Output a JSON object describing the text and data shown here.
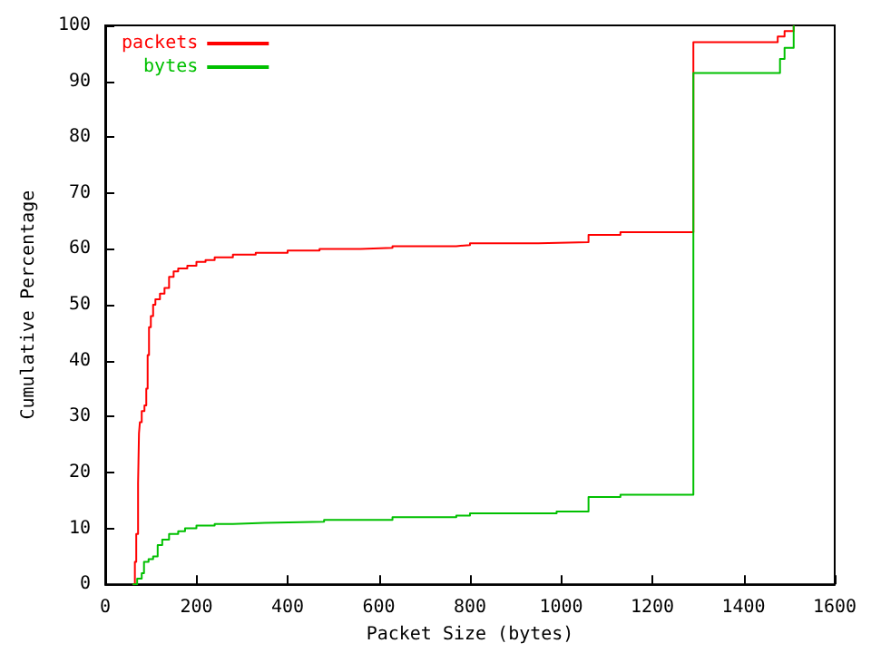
{
  "chart_data": {
    "type": "step",
    "xlabel": "Packet Size (bytes)",
    "ylabel": "Cumulative Percentage",
    "xlim": [
      0,
      1600
    ],
    "xticks": [
      0,
      200,
      400,
      600,
      800,
      1000,
      1200,
      1400,
      1600
    ],
    "ylim": [
      0,
      100
    ],
    "yticks": [
      0,
      10,
      20,
      30,
      40,
      50,
      60,
      70,
      80,
      90,
      100
    ],
    "grid": false,
    "legend": "top left",
    "marker": "none",
    "line_style": "solid",
    "series": [
      {
        "name": "packets",
        "color": "#ff0000",
        "x": [
          60,
          65,
          68,
          72,
          74,
          76,
          80,
          86,
          90,
          93,
          96,
          100,
          105,
          110,
          120,
          130,
          140,
          150,
          160,
          180,
          200,
          220,
          240,
          280,
          330,
          400,
          470,
          560,
          630,
          770,
          800,
          950,
          1060,
          1130,
          1290,
          1475,
          1490,
          1510
        ],
        "values": [
          0,
          4,
          9,
          18,
          27,
          29,
          31,
          32,
          35,
          41,
          46,
          48,
          50,
          51,
          52,
          53,
          55,
          56,
          56.5,
          57,
          57.7,
          58,
          58.5,
          59,
          59.3,
          59.7,
          60,
          60.2,
          60.5,
          60.7,
          61,
          61.2,
          62.5,
          63,
          97,
          98,
          99,
          100
        ]
      },
      {
        "name": "bytes",
        "color": "#00c000",
        "x": [
          60,
          70,
          80,
          85,
          95,
          105,
          115,
          125,
          140,
          160,
          175,
          200,
          240,
          280,
          350,
          480,
          630,
          770,
          800,
          990,
          1060,
          1130,
          1290,
          1480,
          1490,
          1510
        ],
        "values": [
          0,
          1,
          2,
          4,
          4.5,
          5,
          7,
          8,
          9,
          9.5,
          10,
          10.5,
          10.8,
          11,
          11.2,
          11.5,
          12,
          12.3,
          12.7,
          13,
          15.6,
          16,
          91.5,
          94,
          96,
          100
        ]
      }
    ]
  }
}
